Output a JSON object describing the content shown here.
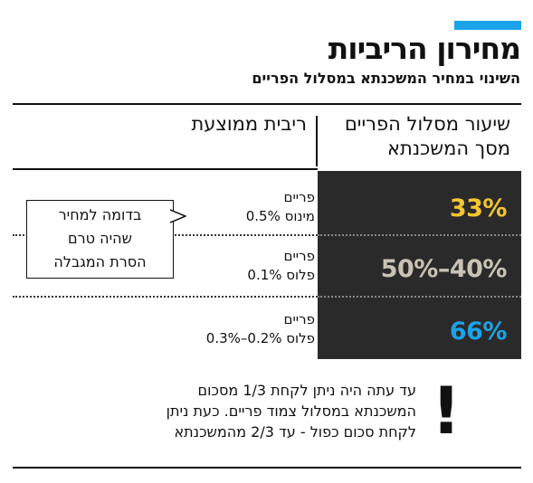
{
  "header": {
    "title": "מחירון הריביות",
    "subtitle": "השינוי במחיר המשכנתא במסלול הפריים"
  },
  "table": {
    "col_share_header_line1": "שיעור מסלול הפריים",
    "col_share_header_line2": "מסך המשכנתא",
    "col_rate_header": "ריבית ממוצעת",
    "rows": [
      {
        "share": "33%",
        "share_color": "#f3c531",
        "rate_line1": "פריים",
        "rate_line2": "מינוס 0.5%"
      },
      {
        "share": "40%–50%",
        "share_color": "#c8c3b4",
        "rate_line1": "פריים",
        "rate_line2": "פלוס 0.1%"
      },
      {
        "share": "66%",
        "share_color": "#1aa3e8",
        "rate_line1": "פריים",
        "rate_line2": "פלוס 0.2%–0.3%"
      }
    ]
  },
  "callout": {
    "line1": "בדומה למחיר",
    "line2": "שהיה טרם",
    "line3": "הסרת המגבלה"
  },
  "note": {
    "line1": "עד עתה היה ניתן לקחת 1/3 מסכום",
    "line2": "המשכנתא במסלול צמוד פריים. כעת ניתן",
    "line3": "לקחת סכום כפול - עד 2/3 מהמשכנתא",
    "icon": "exclamation-icon"
  },
  "colors": {
    "accent": "#1aa3e8",
    "dark_panel": "#2b2a2a"
  }
}
